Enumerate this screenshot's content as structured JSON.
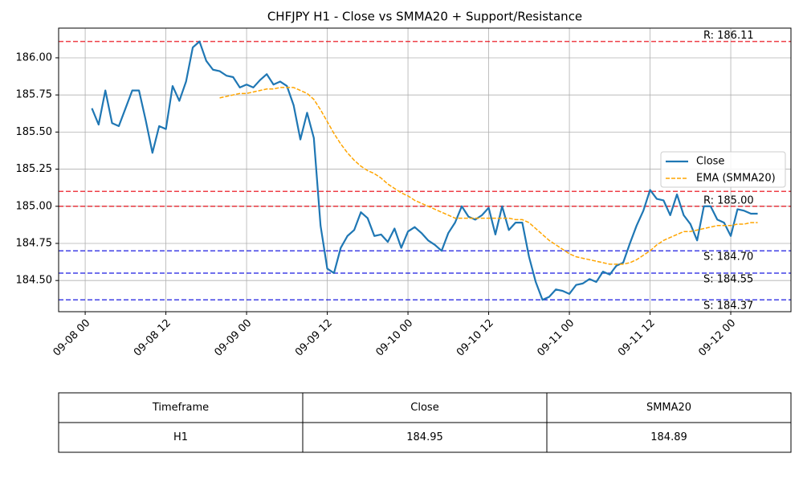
{
  "chart_data": {
    "type": "line",
    "title": "CHFJPY H1 - Close vs SMMA20 + Support/Resistance",
    "x": [
      "09-08 01",
      "09-08 02",
      "09-08 03",
      "09-08 04",
      "09-08 05",
      "09-08 06",
      "09-08 07",
      "09-08 08",
      "09-08 09",
      "09-08 10",
      "09-08 11",
      "09-08 12",
      "09-08 13",
      "09-08 14",
      "09-08 15",
      "09-08 16",
      "09-08 17",
      "09-08 18",
      "09-08 19",
      "09-08 20",
      "09-08 21",
      "09-08 22",
      "09-08 23",
      "09-09 00",
      "09-09 01",
      "09-09 02",
      "09-09 03",
      "09-09 04",
      "09-09 05",
      "09-09 06",
      "09-09 07",
      "09-09 08",
      "09-09 09",
      "09-09 10",
      "09-09 11",
      "09-09 12",
      "09-09 13",
      "09-09 14",
      "09-09 15",
      "09-09 16",
      "09-09 17",
      "09-09 18",
      "09-09 19",
      "09-09 20",
      "09-09 21",
      "09-09 22",
      "09-09 23",
      "09-10 00",
      "09-10 01",
      "09-10 02",
      "09-10 03",
      "09-10 04",
      "09-10 05",
      "09-10 06",
      "09-10 07",
      "09-10 08",
      "09-10 09",
      "09-10 10",
      "09-10 11",
      "09-10 12",
      "09-10 13",
      "09-10 14",
      "09-10 15",
      "09-10 16",
      "09-10 17",
      "09-10 18",
      "09-10 19",
      "09-10 20",
      "09-10 21",
      "09-10 22",
      "09-10 23",
      "09-11 00",
      "09-11 01",
      "09-11 02",
      "09-11 03",
      "09-11 04",
      "09-11 05",
      "09-11 06",
      "09-11 07",
      "09-11 08",
      "09-11 09",
      "09-11 10",
      "09-11 11",
      "09-11 12",
      "09-11 13",
      "09-11 14",
      "09-11 15",
      "09-11 16",
      "09-11 17",
      "09-11 18",
      "09-11 19",
      "09-11 20",
      "09-11 21",
      "09-11 22",
      "09-11 23",
      "09-12 00",
      "09-12 01",
      "09-12 02",
      "09-12 03",
      "09-12 04"
    ],
    "series": [
      {
        "name": "Close",
        "color": "#1f77b4",
        "dashed": false,
        "values": [
          185.66,
          185.55,
          185.78,
          185.56,
          185.54,
          185.66,
          185.78,
          185.78,
          185.58,
          185.36,
          185.54,
          185.52,
          185.81,
          185.71,
          185.84,
          186.07,
          186.11,
          185.98,
          185.92,
          185.91,
          185.88,
          185.87,
          185.8,
          185.82,
          185.8,
          185.85,
          185.89,
          185.82,
          185.84,
          185.81,
          185.68,
          185.45,
          185.63,
          185.46,
          184.87,
          184.58,
          184.55,
          184.72,
          184.8,
          184.84,
          184.96,
          184.92,
          184.8,
          184.81,
          184.76,
          184.85,
          184.72,
          184.83,
          184.86,
          184.82,
          184.77,
          184.74,
          184.7,
          184.82,
          184.89,
          185.0,
          184.93,
          184.91,
          184.94,
          184.99,
          184.81,
          185.0,
          184.84,
          184.89,
          184.89,
          184.66,
          184.49,
          184.37,
          184.39,
          184.44,
          184.43,
          184.41,
          184.47,
          184.48,
          184.51,
          184.49,
          184.56,
          184.54,
          184.6,
          184.62,
          184.75,
          184.87,
          184.97,
          185.11,
          185.05,
          185.04,
          184.94,
          185.08,
          184.94,
          184.88,
          184.77,
          185.0,
          185.0,
          184.91,
          184.89,
          184.8,
          184.98,
          184.97,
          184.95,
          184.95
        ]
      },
      {
        "name": "EMA (SMMA20)",
        "color": "#ffa500",
        "dashed": true,
        "values": [
          null,
          null,
          null,
          null,
          null,
          null,
          null,
          null,
          null,
          null,
          null,
          null,
          null,
          null,
          null,
          null,
          null,
          null,
          null,
          185.73,
          185.74,
          185.75,
          185.76,
          185.76,
          185.77,
          185.78,
          185.79,
          185.79,
          185.8,
          185.8,
          185.8,
          185.78,
          185.76,
          185.72,
          185.65,
          185.57,
          185.49,
          185.42,
          185.36,
          185.31,
          185.27,
          185.24,
          185.22,
          185.19,
          185.15,
          185.12,
          185.09,
          185.07,
          185.04,
          185.02,
          185.0,
          184.98,
          184.96,
          184.94,
          184.92,
          184.92,
          184.92,
          184.92,
          184.92,
          184.92,
          184.92,
          184.92,
          184.92,
          184.91,
          184.91,
          184.89,
          184.85,
          184.81,
          184.77,
          184.74,
          184.71,
          184.68,
          184.66,
          184.65,
          184.64,
          184.63,
          184.62,
          184.61,
          184.61,
          184.61,
          184.62,
          184.64,
          184.67,
          184.7,
          184.74,
          184.77,
          184.79,
          184.81,
          184.83,
          184.83,
          184.84,
          184.85,
          184.86,
          184.87,
          184.87,
          184.87,
          184.88,
          184.88,
          184.89,
          184.89
        ]
      }
    ],
    "levels": [
      {
        "value": 186.11,
        "label": "R: 186.11",
        "color": "#e8000b"
      },
      {
        "value": 185.1,
        "label": null,
        "color": "#e8000b"
      },
      {
        "value": 185.0,
        "label": "R: 185.00",
        "color": "#e8000b"
      },
      {
        "value": 184.7,
        "label": "S: 184.70",
        "color": "#0000dd"
      },
      {
        "value": 184.55,
        "label": "S: 184.55",
        "color": "#0000dd"
      },
      {
        "value": 184.37,
        "label": "S: 184.37",
        "color": "#0000dd"
      }
    ],
    "ylim": [
      184.29,
      186.2
    ],
    "yticks": [
      {
        "value": 184.5,
        "label": "184.50"
      },
      {
        "value": 184.75,
        "label": "184.75"
      },
      {
        "value": 185,
        "label": "185.00"
      },
      {
        "value": 185.25,
        "label": "185.25"
      },
      {
        "value": 185.5,
        "label": "185.50"
      },
      {
        "value": 185.75,
        "label": "185.75"
      },
      {
        "value": 186,
        "label": "186.00"
      }
    ],
    "xticks": [
      "09-08 00",
      "09-08 12",
      "09-09 00",
      "09-09 12",
      "09-10 00",
      "09-10 12",
      "09-11 00",
      "09-11 12",
      "09-12 00"
    ],
    "grid": true,
    "legend": "center right"
  },
  "table": {
    "header": [
      "Timeframe",
      "Close",
      "SMMA20"
    ],
    "rows": [
      [
        "H1",
        "184.95",
        "184.89"
      ]
    ]
  }
}
